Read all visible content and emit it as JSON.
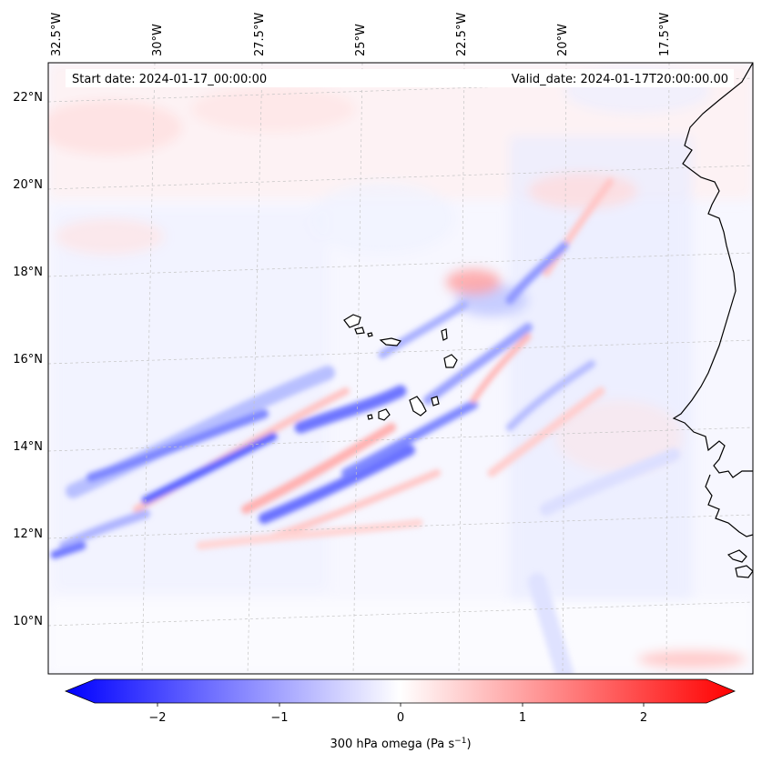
{
  "header": {
    "start_date": "Start date: 2024-01-17_00:00:00",
    "valid_date": "Valid_date: 2024-01-17T20:00:00.00"
  },
  "map": {
    "lon_labels": [
      "32.5°W",
      "30°W",
      "27.5°W",
      "25°W",
      "22.5°W",
      "20°W",
      "17.5°W"
    ],
    "lat_labels": [
      "22°N",
      "20°N",
      "18°N",
      "16°N",
      "14°N",
      "12°N",
      "10°N"
    ],
    "field": "300 hPa omega",
    "colors": {
      "negative": "#0000ff",
      "neutral": "#ffffff",
      "positive": "#ff0000",
      "coast": "#000000",
      "grid": "#b0b0b0"
    }
  },
  "colorbar": {
    "ticks": [
      "−2",
      "−1",
      "0",
      "1",
      "2"
    ],
    "label_main": "300 hPa omega (Pa s",
    "label_exp": "−1",
    "label_end": ")",
    "range": [
      -2.6,
      2.6
    ]
  }
}
